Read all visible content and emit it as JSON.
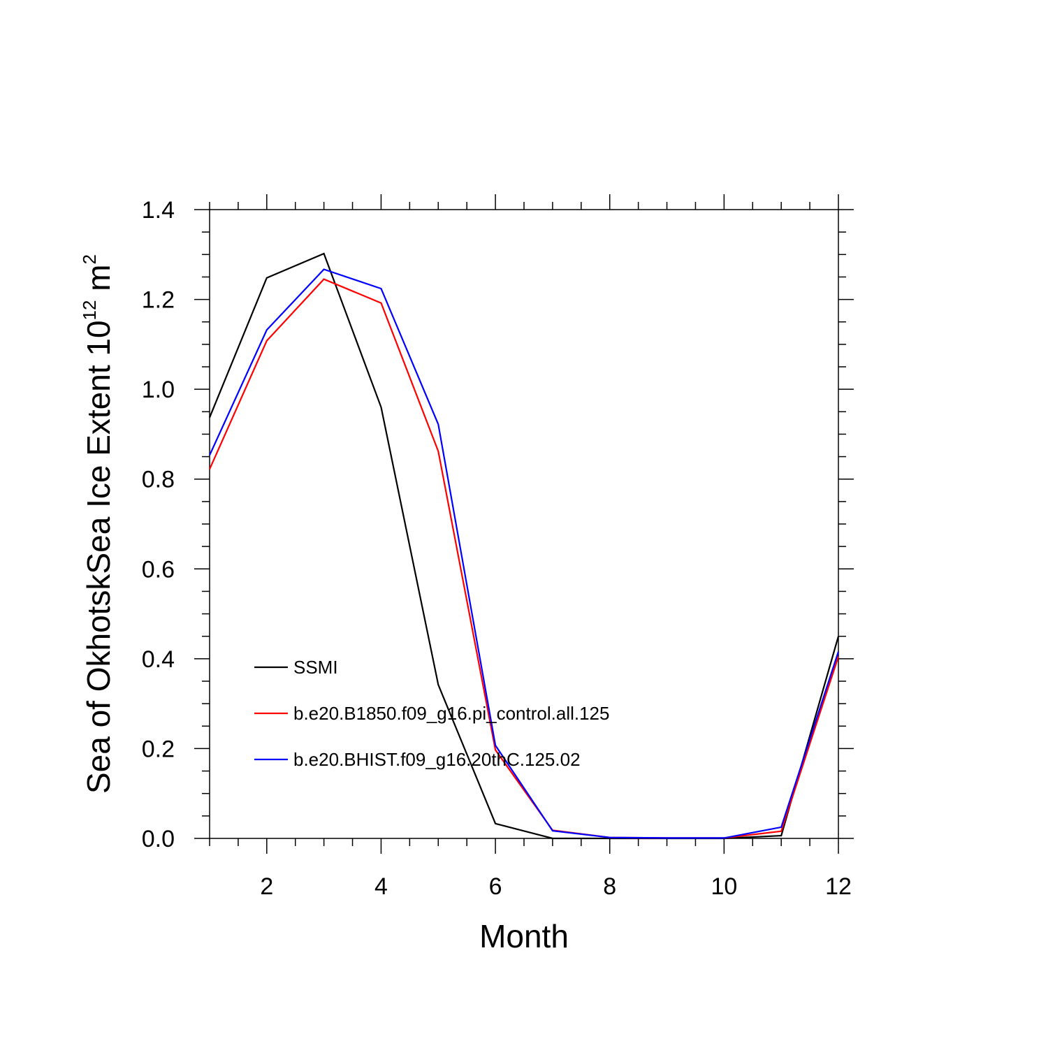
{
  "chart_data": {
    "type": "line",
    "xlabel": "Month",
    "ylabel": {
      "main": "Sea of OkhotskSea Ice Extent 10",
      "exponent": "12",
      "unit": " m",
      "unit_exponent": "2"
    },
    "xlim": [
      1,
      12
    ],
    "ylim": [
      0,
      1.4
    ],
    "x_ticks": [
      2,
      4,
      6,
      8,
      10,
      12
    ],
    "x_tick_labels": [
      "2",
      "4",
      "6",
      "8",
      "10",
      "12"
    ],
    "y_ticks": [
      0,
      0.2,
      0.4,
      0.6,
      0.8,
      1.0,
      1.2,
      1.4
    ],
    "y_tick_labels": [
      "0.0",
      "0.2",
      "0.4",
      "0.6",
      "0.8",
      "1.0",
      "1.2",
      "1.4"
    ],
    "grid": false,
    "legend_position": "lower-left inside",
    "x": [
      1,
      2,
      3,
      4,
      5,
      6,
      7,
      8,
      9,
      10,
      11,
      12
    ],
    "series": [
      {
        "name": "SSMI",
        "color": "#000000",
        "values": [
          0.937,
          1.248,
          1.302,
          0.96,
          0.342,
          0.033,
          0.0,
          0.0,
          0.0,
          0.0,
          0.006,
          0.45
        ]
      },
      {
        "name": "b.e20.B1850.f09_g16.pi_control.all.125",
        "color": "#ff0000",
        "values": [
          0.822,
          1.108,
          1.245,
          1.192,
          0.862,
          0.197,
          0.018,
          0.002,
          0.001,
          0.001,
          0.016,
          0.405
        ]
      },
      {
        "name": "b.e20.BHIST.f09_g16.20thC.125.02",
        "color": "#0000ff",
        "values": [
          0.853,
          1.132,
          1.267,
          1.224,
          0.922,
          0.207,
          0.017,
          0.002,
          0.001,
          0.001,
          0.025,
          0.416
        ]
      }
    ]
  }
}
